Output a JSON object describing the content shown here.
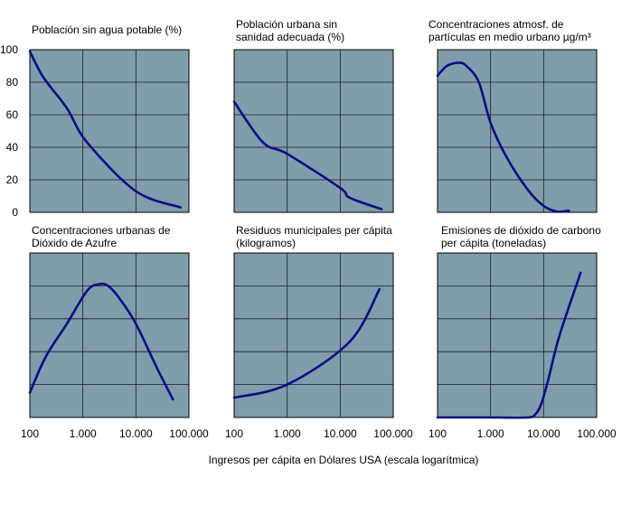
{
  "chart_data": [
    {
      "type": "line",
      "title_lines": [
        "Población sin agua potable (%)"
      ],
      "x": [
        100,
        180,
        500,
        1200,
        10000,
        70000
      ],
      "y": [
        99,
        83,
        64,
        43,
        13,
        3
      ],
      "ylim": [
        0,
        100
      ],
      "yticks": [
        "0",
        "20",
        "40",
        "60",
        "80",
        "100"
      ],
      "xscale": "log",
      "xlim": [
        100,
        100000
      ]
    },
    {
      "type": "line",
      "title_lines": [
        "Población urbana sin",
        "sanidad adecuada (%)"
      ],
      "x": [
        100,
        350,
        1000,
        10000,
        15000,
        60000
      ],
      "y": [
        68,
        43,
        36,
        15,
        9,
        2
      ],
      "ylim": [
        0,
        100
      ],
      "xscale": "log",
      "xlim": [
        100,
        100000
      ]
    },
    {
      "type": "line",
      "title_lines": [
        "Concentraciones atmosf. de",
        "partículas en medio urbano µg/m³"
      ],
      "x": [
        100,
        150,
        250,
        350,
        600,
        1000,
        2000,
        5000,
        10000,
        18000,
        30000
      ],
      "y": [
        84,
        90,
        92,
        90,
        80,
        55,
        34,
        14,
        4,
        0.5,
        1
      ],
      "ylim": [
        0,
        100
      ],
      "xscale": "log",
      "xlim": [
        100,
        100000
      ]
    },
    {
      "type": "line",
      "title_lines": [
        "Concentraciones urbanas de",
        "Dióxido de Azufre"
      ],
      "x": [
        100,
        200,
        500,
        1200,
        2000,
        3000,
        5000,
        10000,
        25000,
        50000
      ],
      "y": [
        15,
        37,
        57,
        77,
        81,
        80,
        72,
        57,
        30,
        11
      ],
      "ylim": [
        0,
        100
      ],
      "xscale": "log",
      "xlim": [
        100,
        100000
      ]
    },
    {
      "type": "line",
      "title_lines": [
        "Residuos municipales per cápita",
        "(kilogramos)"
      ],
      "x": [
        100,
        1000,
        15000,
        55000
      ],
      "y": [
        12,
        20,
        46,
        78
      ],
      "ylim": [
        0,
        100
      ],
      "xscale": "log",
      "xlim": [
        100,
        100000
      ]
    },
    {
      "type": "line",
      "title_lines": [
        "Emisiones de dióxido de carbono",
        "per cápita (toneladas)"
      ],
      "x": [
        100,
        1000,
        5000,
        7000,
        9000,
        12000,
        20000,
        50000
      ],
      "y": [
        0,
        0,
        0,
        2,
        8,
        22,
        50,
        88
      ],
      "ylim": [
        0,
        100
      ],
      "xscale": "log",
      "xlim": [
        100,
        100000
      ]
    }
  ],
  "x_ticks": [
    "100",
    "1.000",
    "10.000",
    "100.000"
  ],
  "xlabel": "Ingresos per cápita en Dólares USA (escala logarítmica)",
  "colors": {
    "plot_bg": "#7f9dab",
    "line": "#0d0d84",
    "grid": "#1b1b2e",
    "border": "#000000"
  }
}
